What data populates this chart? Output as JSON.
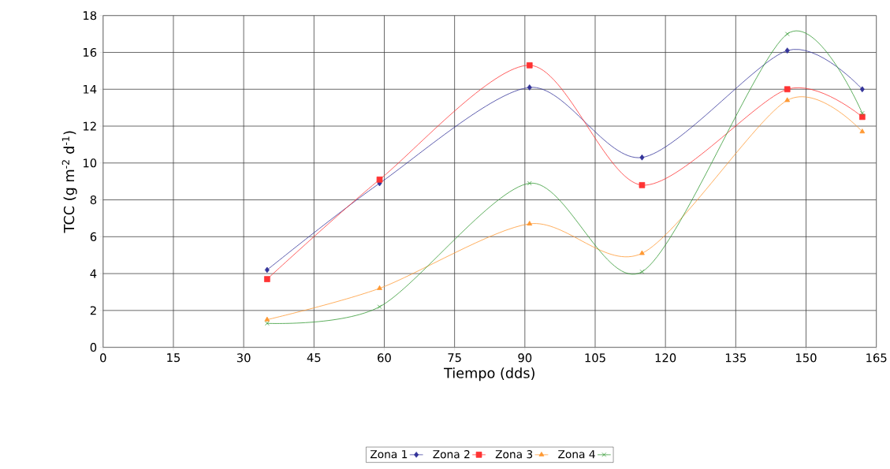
{
  "chart_data": {
    "type": "line",
    "xlabel": "Tiempo (dds)",
    "ylabel": "TCC (g m$^{-2}$ d$^{-1}$)",
    "x": [
      35,
      59,
      91,
      115,
      146,
      162
    ],
    "xlim": [
      0,
      165
    ],
    "xticks": [
      0,
      15,
      30,
      45,
      60,
      75,
      90,
      105,
      120,
      135,
      150,
      165
    ],
    "ylim": [
      0,
      18
    ],
    "yticks": [
      0,
      2,
      4,
      6,
      8,
      10,
      12,
      14,
      16,
      18
    ],
    "grid": true,
    "legend": "bottom",
    "series": [
      {
        "name": "Zona 1",
        "color": "#333399",
        "marker": "diamond",
        "values": [
          4.2,
          8.9,
          14.1,
          10.3,
          16.1,
          14.0
        ]
      },
      {
        "name": "Zona 2",
        "color": "#ff3333",
        "marker": "square",
        "values": [
          3.7,
          9.1,
          15.3,
          8.8,
          14.0,
          12.5
        ]
      },
      {
        "name": "Zona 3",
        "color": "#ff9933",
        "marker": "triangle",
        "values": [
          1.5,
          3.2,
          6.7,
          5.1,
          13.4,
          11.7
        ]
      },
      {
        "name": "Zona 4",
        "color": "#339933",
        "marker": "cross",
        "values": [
          1.3,
          2.2,
          8.9,
          4.1,
          17.0,
          12.7
        ]
      }
    ]
  }
}
